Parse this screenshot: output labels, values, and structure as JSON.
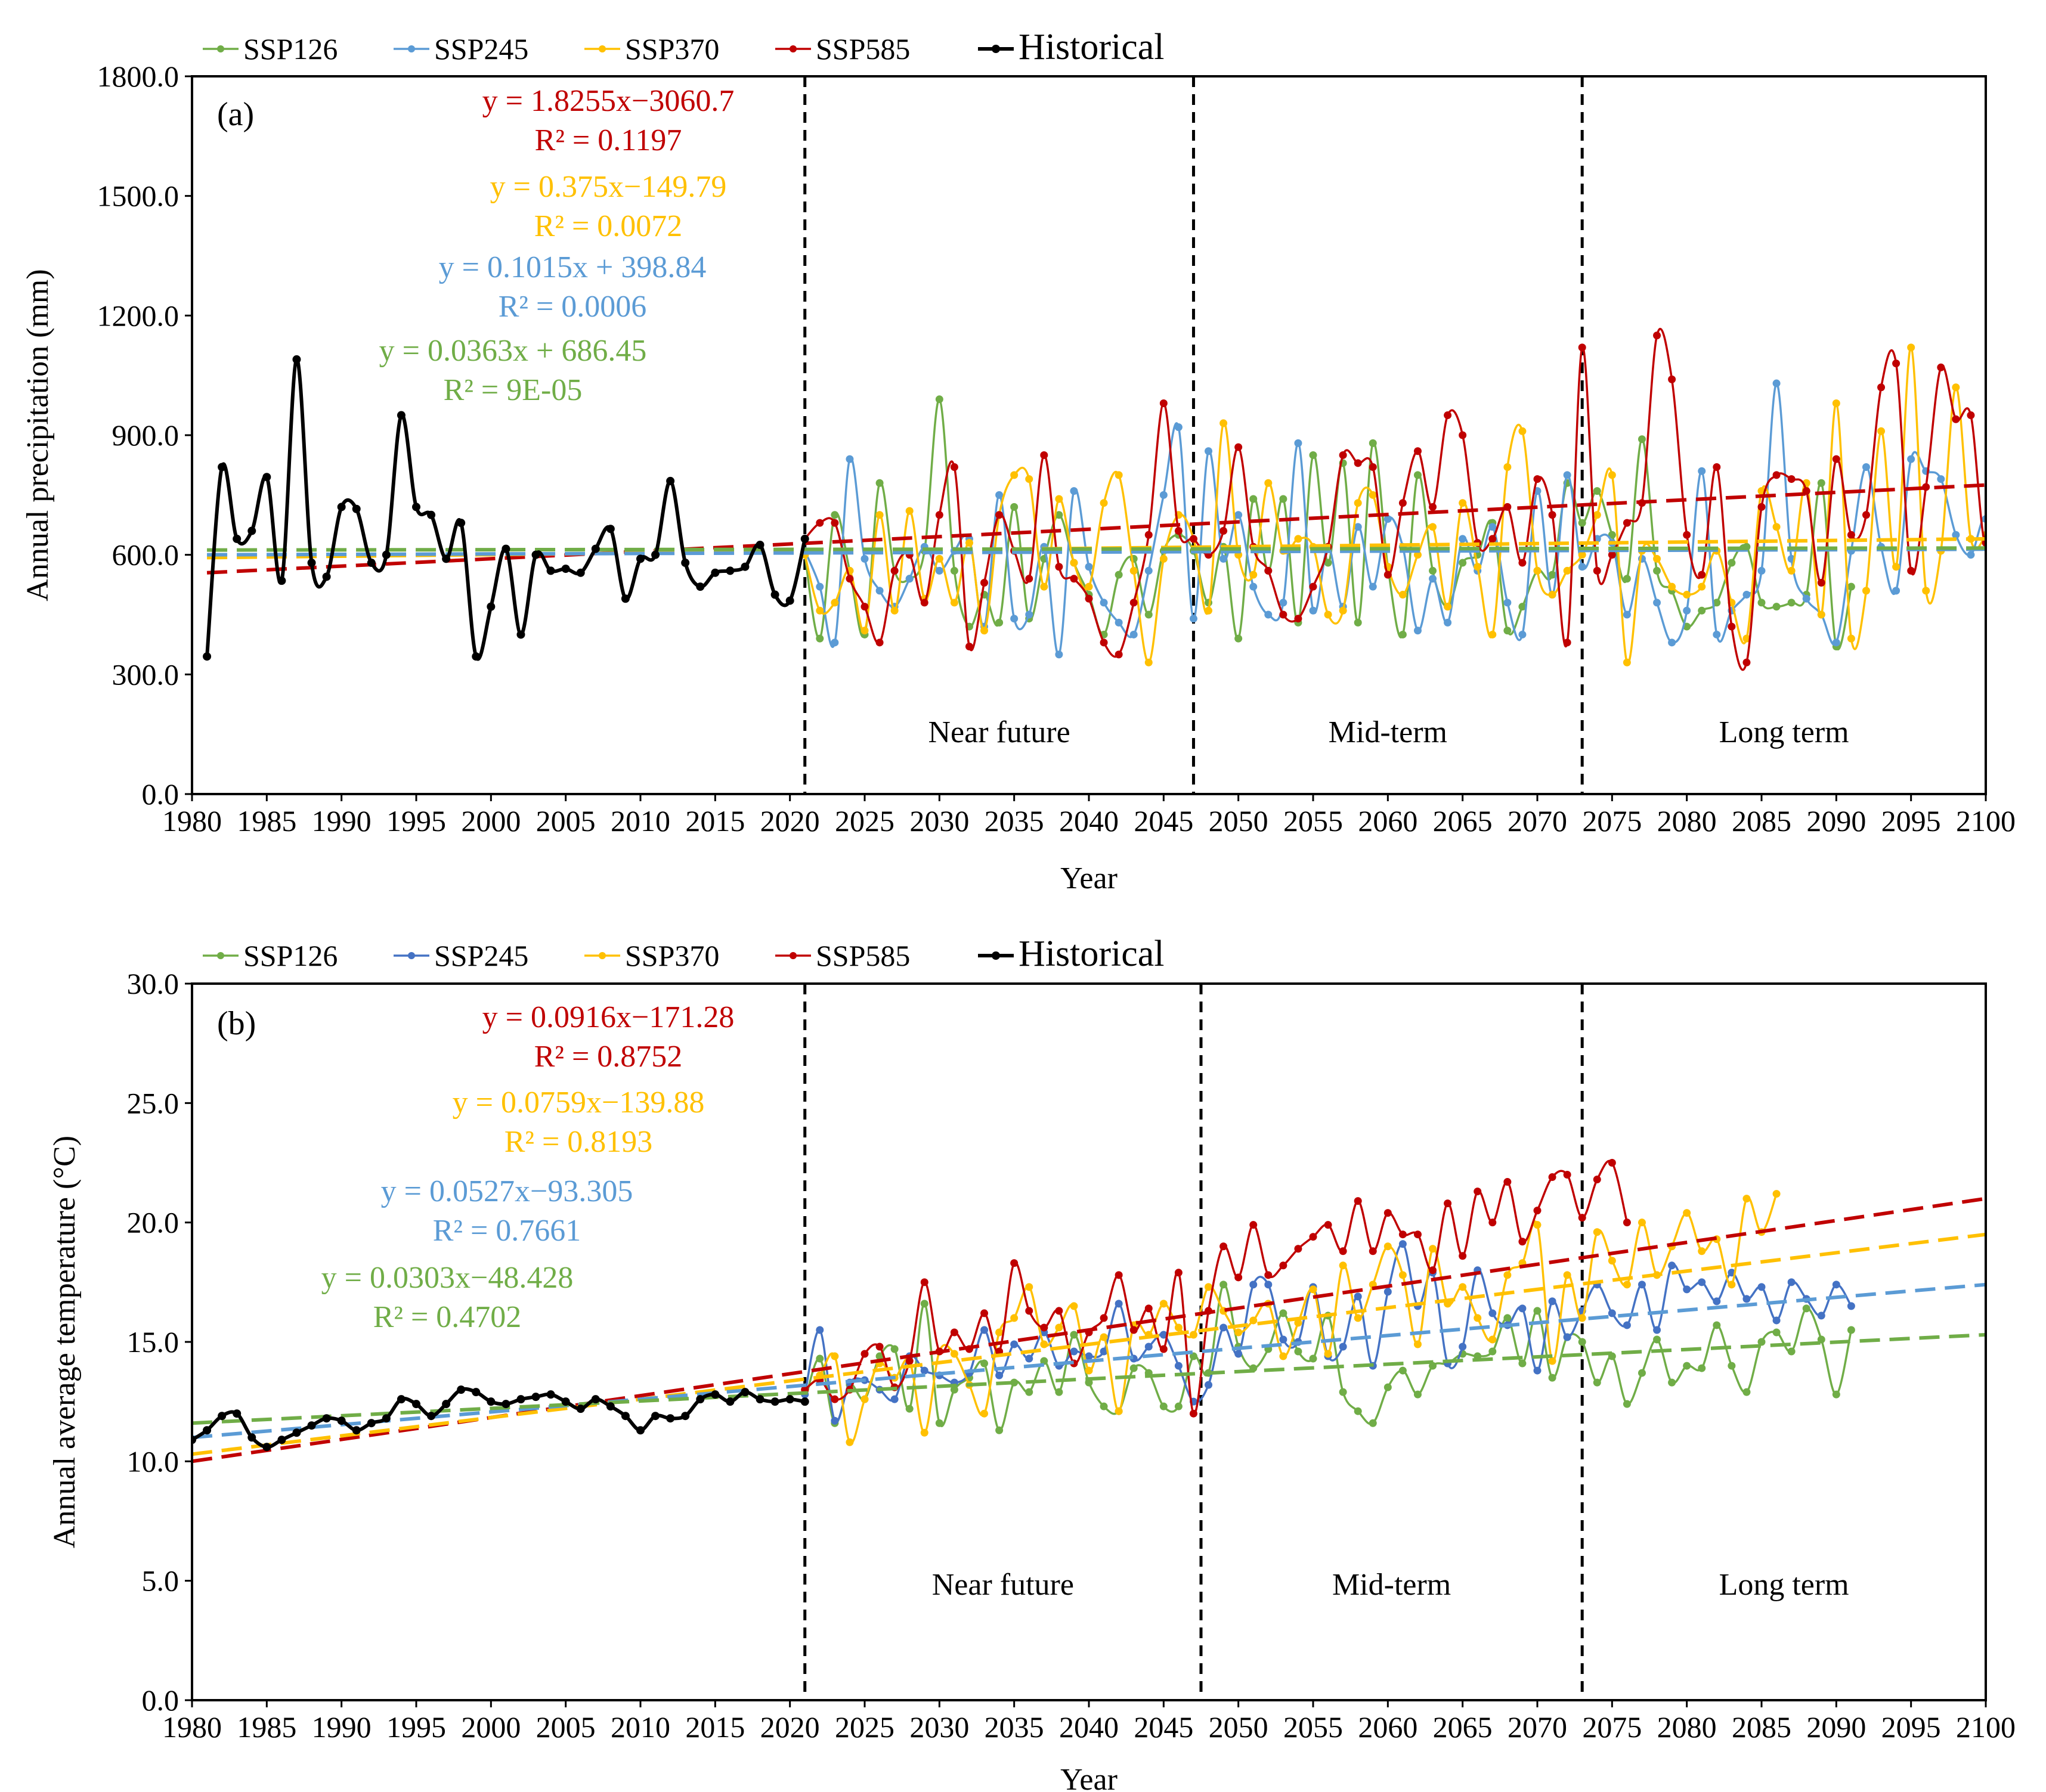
{
  "figure": {
    "colors": {
      "SSP126": "#70ad47",
      "SSP245_a": "#5b9bd5",
      "SSP245_b": "#4472c4",
      "SSP370": "#ffc000",
      "SSP585": "#c00000",
      "Historical": "#000000",
      "trend_SSP126": "#70ad47",
      "trend_SSP245": "#5b9bd5",
      "trend_SSP370": "#ffc000",
      "trend_SSP585": "#c00000"
    }
  },
  "chart_data": [
    {
      "type": "line",
      "panel_label": "(a)",
      "xlabel": "Year",
      "ylabel": "Annual precipitation (mm)",
      "xlim": [
        1980,
        2100
      ],
      "ylim": [
        0,
        1800
      ],
      "xticks": [
        "1980",
        "1985",
        "1990",
        "1995",
        "2000",
        "2005",
        "2010",
        "2015",
        "2020",
        "2025",
        "2030",
        "2035",
        "2040",
        "2045",
        "2050",
        "2055",
        "2060",
        "2065",
        "2070",
        "2075",
        "2080",
        "2085",
        "2090",
        "2095",
        "2100"
      ],
      "yticks": [
        "0.0",
        "300.0",
        "600.0",
        "900.0",
        "1200.0",
        "1500.0",
        "1800.0"
      ],
      "legend": [
        "SSP126",
        "SSP245",
        "SSP370",
        "SSP585",
        "Historical"
      ],
      "periods": [
        "Near future",
        "Mid-term",
        "Long term"
      ],
      "period_dividers": [
        2021,
        2047,
        2073
      ],
      "equations": [
        {
          "series": "SSP585",
          "eq": "y = 1.8255x−3060.7",
          "r2": "R² = 0.1197"
        },
        {
          "series": "SSP370",
          "eq": "y = 0.375x−149.79",
          "r2": "R² = 0.0072"
        },
        {
          "series": "SSP245",
          "eq": "y = 0.1015x + 398.84",
          "r2": "R² = 0.0006"
        },
        {
          "series": "SSP126",
          "eq": "y = 0.0363x + 686.45",
          "r2": "R² = 9E-05"
        }
      ],
      "trendlines": [
        {
          "series": "SSP585",
          "x": [
            1981,
            2100
          ],
          "y": [
            555,
            775
          ]
        },
        {
          "series": "SSP370",
          "x": [
            1981,
            2100
          ],
          "y": [
            593,
            640
          ]
        },
        {
          "series": "SSP245",
          "x": [
            1981,
            2100
          ],
          "y": [
            600,
            614
          ]
        },
        {
          "series": "SSP126",
          "x": [
            1981,
            2100
          ],
          "y": [
            612,
            617
          ]
        }
      ],
      "historical": {
        "x": [
          1981,
          1982,
          1983,
          1984,
          1985,
          1986,
          1987,
          1988,
          1989,
          1990,
          1991,
          1992,
          1993,
          1994,
          1995,
          1996,
          1997,
          1998,
          1999,
          2000,
          2001,
          2002,
          2003,
          2004,
          2005,
          2006,
          2007,
          2008,
          2009,
          2010,
          2011,
          2012,
          2013,
          2014,
          2015,
          2016,
          2017,
          2018,
          2019,
          2020,
          2021
        ],
        "y": [
          345,
          820,
          640,
          660,
          795,
          535,
          1090,
          580,
          545,
          720,
          715,
          580,
          600,
          950,
          720,
          700,
          590,
          680,
          345,
          470,
          615,
          400,
          600,
          560,
          565,
          555,
          615,
          665,
          490,
          590,
          600,
          785,
          580,
          520,
          555,
          560,
          570,
          625,
          500,
          485,
          640
        ]
      },
      "series": [
        {
          "name": "SSP126",
          "x_start": 2021,
          "values": [
            600,
            390,
            700,
            560,
            400,
            780,
            560,
            540,
            610,
            990,
            560,
            420,
            500,
            430,
            720,
            440,
            590,
            700,
            580,
            500,
            400,
            550,
            590,
            450,
            610,
            650,
            610,
            480,
            620,
            390,
            740,
            560,
            740,
            430,
            850,
            580,
            830,
            430,
            880,
            570,
            400,
            800,
            560,
            470,
            580,
            600,
            680,
            410,
            470,
            560,
            550,
            780,
            680,
            760,
            650,
            540,
            890,
            560,
            510,
            420,
            460,
            480,
            580,
            620,
            480,
            470,
            480,
            500,
            780,
            370,
            520
          ]
        },
        {
          "name": "SSP245",
          "x_start": 2021,
          "values": [
            610,
            520,
            380,
            840,
            590,
            510,
            470,
            540,
            620,
            560,
            610,
            640,
            420,
            750,
            440,
            450,
            620,
            350,
            760,
            570,
            480,
            430,
            400,
            560,
            750,
            920,
            440,
            860,
            590,
            700,
            520,
            450,
            480,
            880,
            460,
            620,
            470,
            670,
            520,
            690,
            620,
            410,
            540,
            430,
            640,
            560,
            670,
            480,
            400,
            760,
            500,
            800,
            570,
            640,
            630,
            450,
            590,
            480,
            380,
            460,
            810,
            400,
            460,
            500,
            560,
            1030,
            590,
            490,
            450,
            380,
            610,
            820,
            620,
            510,
            840,
            810,
            790,
            650,
            600,
            690,
            500
          ]
        },
        {
          "name": "SSP370",
          "x_start": 2021,
          "values": [
            600,
            460,
            480,
            560,
            410,
            700,
            460,
            710,
            490,
            590,
            480,
            630,
            410,
            700,
            800,
            790,
            520,
            740,
            580,
            520,
            730,
            800,
            560,
            330,
            590,
            700,
            640,
            460,
            930,
            600,
            550,
            780,
            610,
            640,
            620,
            450,
            460,
            730,
            750,
            570,
            500,
            600,
            670,
            470,
            730,
            570,
            400,
            820,
            910,
            560,
            500,
            560,
            600,
            700,
            800,
            330,
            610,
            590,
            520,
            500,
            520,
            610,
            480,
            390,
            760,
            670,
            560,
            780,
            450,
            980,
            390,
            510,
            910,
            570,
            1120,
            510,
            610,
            1020,
            640,
            650
          ]
        },
        {
          "name": "SSP585",
          "x_start": 2021,
          "values": [
            640,
            680,
            680,
            540,
            470,
            380,
            560,
            600,
            480,
            700,
            820,
            370,
            530,
            700,
            610,
            540,
            850,
            570,
            540,
            490,
            380,
            350,
            480,
            650,
            980,
            660,
            640,
            600,
            660,
            870,
            620,
            560,
            450,
            440,
            520,
            620,
            850,
            830,
            820,
            550,
            730,
            860,
            720,
            950,
            900,
            630,
            640,
            720,
            580,
            790,
            700,
            380,
            1120,
            560,
            600,
            680,
            730,
            1150,
            1040,
            650,
            550,
            820,
            420,
            330,
            720,
            800,
            790,
            760,
            530,
            840,
            650,
            700,
            1020,
            1080,
            560,
            770,
            1070,
            940,
            950,
            630,
            980,
            1070
          ]
        }
      ]
    },
    {
      "type": "line",
      "panel_label": "(b)",
      "xlabel": "Year",
      "ylabel": "Annual average temperature (°C)",
      "xlim": [
        1980,
        2100
      ],
      "ylim": [
        0,
        30
      ],
      "xticks": [
        "1980",
        "1985",
        "1990",
        "1995",
        "2000",
        "2005",
        "2010",
        "2015",
        "2020",
        "2025",
        "2030",
        "2035",
        "2040",
        "2045",
        "2050",
        "2055",
        "2060",
        "2065",
        "2070",
        "2075",
        "2080",
        "2085",
        "2090",
        "2095",
        "2100"
      ],
      "yticks": [
        "0.0",
        "5.0",
        "10.0",
        "15.0",
        "20.0",
        "25.0",
        "30.0"
      ],
      "legend": [
        "SSP126",
        "SSP245",
        "SSP370",
        "SSP585",
        "Historical"
      ],
      "periods": [
        "Near future",
        "Mid-term",
        "Long term"
      ],
      "period_dividers": [
        2021,
        2047.5,
        2073
      ],
      "equations": [
        {
          "series": "SSP585",
          "eq": "y = 0.0916x−171.28",
          "r2": "R² = 0.8752"
        },
        {
          "series": "SSP370",
          "eq": "y = 0.0759x−139.88",
          "r2": "R² = 0.8193"
        },
        {
          "series": "SSP245",
          "eq": "y = 0.0527x−93.305",
          "r2": "R² = 0.7661"
        },
        {
          "series": "SSP126",
          "eq": "y = 0.0303x−48.428",
          "r2": "R² = 0.4702"
        }
      ],
      "trendlines": [
        {
          "series": "SSP585",
          "x": [
            1980,
            2100
          ],
          "y": [
            10.0,
            21.0
          ]
        },
        {
          "series": "SSP370",
          "x": [
            1980,
            2100
          ],
          "y": [
            10.3,
            19.5
          ]
        },
        {
          "series": "SSP245",
          "x": [
            1980,
            2100
          ],
          "y": [
            11.0,
            17.4
          ]
        },
        {
          "series": "SSP126",
          "x": [
            1980,
            2100
          ],
          "y": [
            11.6,
            15.3
          ]
        }
      ],
      "historical": {
        "x": [
          1980,
          1981,
          1982,
          1983,
          1984,
          1985,
          1986,
          1987,
          1988,
          1989,
          1990,
          1991,
          1992,
          1993,
          1994,
          1995,
          1996,
          1997,
          1998,
          1999,
          2000,
          2001,
          2002,
          2003,
          2004,
          2005,
          2006,
          2007,
          2008,
          2009,
          2010,
          2011,
          2012,
          2013,
          2014,
          2015,
          2016,
          2017,
          2018,
          2019,
          2020,
          2021
        ],
        "y": [
          10.9,
          11.3,
          11.9,
          12.0,
          11.0,
          10.6,
          10.9,
          11.2,
          11.5,
          11.8,
          11.7,
          11.3,
          11.6,
          11.8,
          12.6,
          12.4,
          11.9,
          12.4,
          13.0,
          12.9,
          12.5,
          12.4,
          12.6,
          12.7,
          12.8,
          12.5,
          12.2,
          12.6,
          12.3,
          11.9,
          11.3,
          11.9,
          11.8,
          11.9,
          12.6,
          12.8,
          12.5,
          12.9,
          12.6,
          12.5,
          12.6,
          12.5
        ]
      },
      "series": [
        {
          "name": "SSP126",
          "x_start": 2021,
          "values": [
            12.5,
            14.3,
            11.6,
            13.2,
            12.6,
            14.4,
            14.7,
            12.2,
            16.6,
            11.6,
            13.0,
            13.5,
            14.1,
            11.3,
            13.3,
            12.9,
            14.2,
            12.9,
            15.3,
            13.3,
            12.3,
            12.1,
            13.9,
            13.7,
            12.3,
            12.3,
            14.4,
            13.7,
            17.4,
            14.8,
            13.9,
            14.7,
            16.2,
            14.6,
            14.3,
            16.1,
            12.9,
            12.1,
            11.6,
            13.1,
            13.8,
            12.8,
            14.0,
            14.1,
            14.5,
            14.4,
            14.6,
            16.0,
            14.1,
            16.3,
            13.5,
            15.2,
            15.0,
            13.3,
            14.4,
            12.4,
            13.7,
            15.1,
            13.3,
            14.0,
            13.9,
            15.7,
            14.0,
            12.9,
            15.0,
            15.4,
            14.6,
            16.4,
            15.1,
            12.8,
            15.5
          ]
        },
        {
          "name": "SSP245",
          "x_start": 2021,
          "values": [
            12.8,
            15.5,
            11.7,
            13.3,
            13.4,
            13.0,
            12.6,
            14.4,
            13.8,
            13.6,
            13.3,
            13.7,
            15.5,
            13.6,
            14.9,
            14.3,
            15.4,
            14.0,
            14.6,
            14.4,
            14.6,
            16.6,
            14.3,
            14.8,
            15.3,
            14.0,
            12.5,
            13.2,
            15.6,
            14.5,
            17.4,
            17.4,
            15.1,
            15.0,
            17.3,
            14.4,
            14.8,
            16.9,
            14.0,
            17.1,
            19.1,
            16.5,
            17.9,
            14.1,
            14.8,
            18.0,
            16.2,
            15.7,
            16.4,
            13.8,
            16.7,
            15.2,
            16.3,
            17.4,
            16.2,
            15.7,
            17.4,
            15.5,
            18.2,
            17.2,
            17.5,
            16.7,
            17.9,
            16.8,
            17.3,
            15.9,
            17.5,
            16.8,
            16.1,
            17.4,
            16.5
          ]
        },
        {
          "name": "SSP370",
          "x_start": 2021,
          "values": [
            13.0,
            13.6,
            14.4,
            10.8,
            12.6,
            14.1,
            13.5,
            14.2,
            11.2,
            14.6,
            14.5,
            13.2,
            12.0,
            15.4,
            16.0,
            17.3,
            14.9,
            15.6,
            16.5,
            13.8,
            15.2,
            12.1,
            15.7,
            15.3,
            16.6,
            15.6,
            15.3,
            17.3,
            16.3,
            15.4,
            15.9,
            16.6,
            14.4,
            15.8,
            17.2,
            14.5,
            18.2,
            16.0,
            17.4,
            19.0,
            17.8,
            14.9,
            18.9,
            16.6,
            17.3,
            16.0,
            15.1,
            17.8,
            18.3,
            19.9,
            14.2,
            17.8,
            16.0,
            19.6,
            18.4,
            17.4,
            20.0,
            17.8,
            19.0,
            20.4,
            18.8,
            19.3,
            17.4,
            21.0,
            19.6,
            21.2
          ]
        },
        {
          "name": "SSP585",
          "x_start": 2021,
          "values": [
            13.0,
            13.4,
            12.6,
            13.0,
            14.5,
            14.8,
            13.1,
            14.2,
            17.5,
            14.6,
            15.4,
            14.7,
            16.2,
            14.6,
            18.3,
            16.3,
            15.6,
            16.3,
            14.1,
            15.4,
            16.0,
            17.8,
            15.5,
            16.4,
            14.7,
            17.9,
            12.0,
            16.3,
            19.0,
            17.7,
            19.9,
            17.8,
            18.2,
            18.9,
            19.4,
            19.9,
            18.8,
            20.9,
            18.8,
            20.4,
            19.5,
            19.5,
            18.0,
            20.8,
            18.6,
            21.3,
            20.0,
            21.7,
            19.2,
            20.5,
            21.9,
            22.0,
            20.2,
            21.8,
            22.5,
            20.0
          ]
        }
      ]
    }
  ]
}
